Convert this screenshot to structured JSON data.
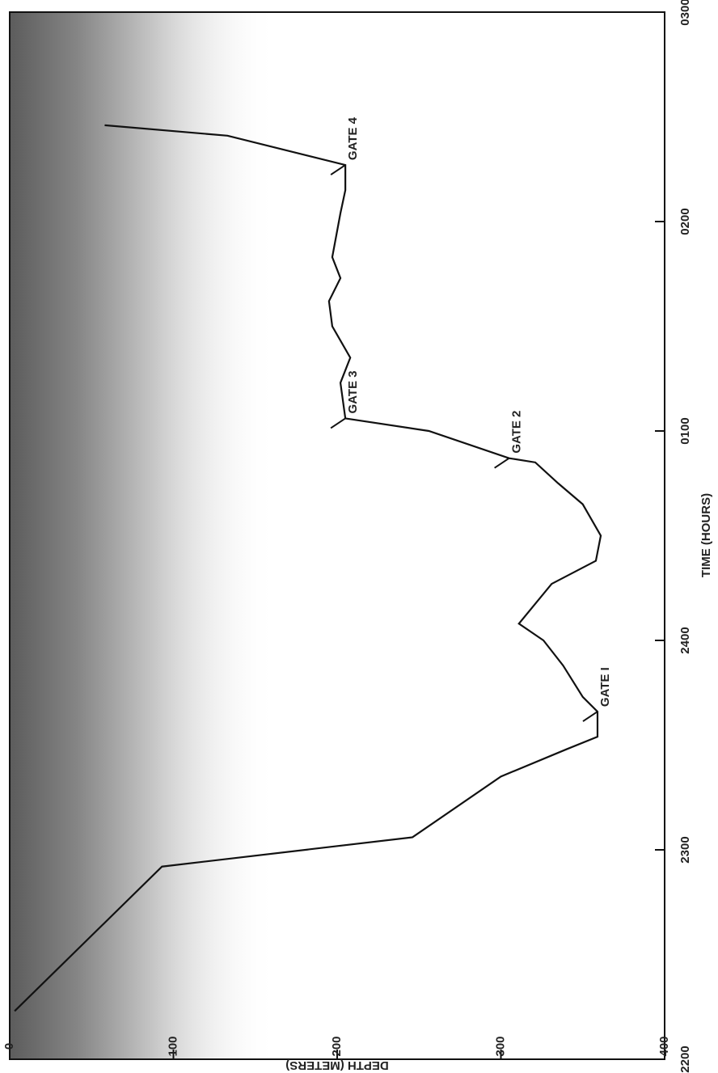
{
  "chart_data": {
    "type": "line",
    "x_label": "TIME (HOURS)",
    "y_label": "DEPTH (METERS)",
    "xlim": [
      0,
      5
    ],
    "ylim": [
      0,
      400
    ],
    "xticks": [
      {
        "value": 0,
        "label": "2200"
      },
      {
        "value": 1,
        "label": "2300"
      },
      {
        "value": 2,
        "label": "2400"
      },
      {
        "value": 3,
        "label": "0100"
      },
      {
        "value": 4,
        "label": "0200"
      },
      {
        "value": 5,
        "label": "0300"
      }
    ],
    "yticks": [
      0,
      100,
      200,
      300,
      400
    ],
    "y_inverted": true,
    "grid": false,
    "series": [
      {
        "color": "#111",
        "x": [
          0.23,
          0.92,
          1.06,
          1.35,
          1.48,
          1.54,
          1.66,
          1.73,
          1.88,
          2.0,
          2.08,
          2.27,
          2.38,
          2.5,
          2.65,
          2.75,
          2.85,
          2.87,
          3.0,
          3.06,
          3.23,
          3.35,
          3.5,
          3.62,
          3.73,
          3.83,
          4.04,
          4.15,
          4.27,
          4.41,
          4.46
        ],
        "values": [
          3,
          93,
          246,
          300,
          340,
          359,
          359,
          350,
          338,
          326,
          311,
          331,
          358,
          361,
          350,
          335,
          321,
          305,
          256,
          205,
          202,
          208,
          197,
          195,
          202,
          197,
          202,
          205,
          205,
          133,
          58
        ]
      }
    ],
    "annotations": [
      {
        "text": "GATE I",
        "x": 1.66,
        "y": 359
      },
      {
        "text": "GATE 2",
        "x": 2.87,
        "y": 305
      },
      {
        "text": "GATE 3",
        "x": 3.06,
        "y": 205
      },
      {
        "text": "GATE 4",
        "x": 4.27,
        "y": 205
      }
    ]
  }
}
